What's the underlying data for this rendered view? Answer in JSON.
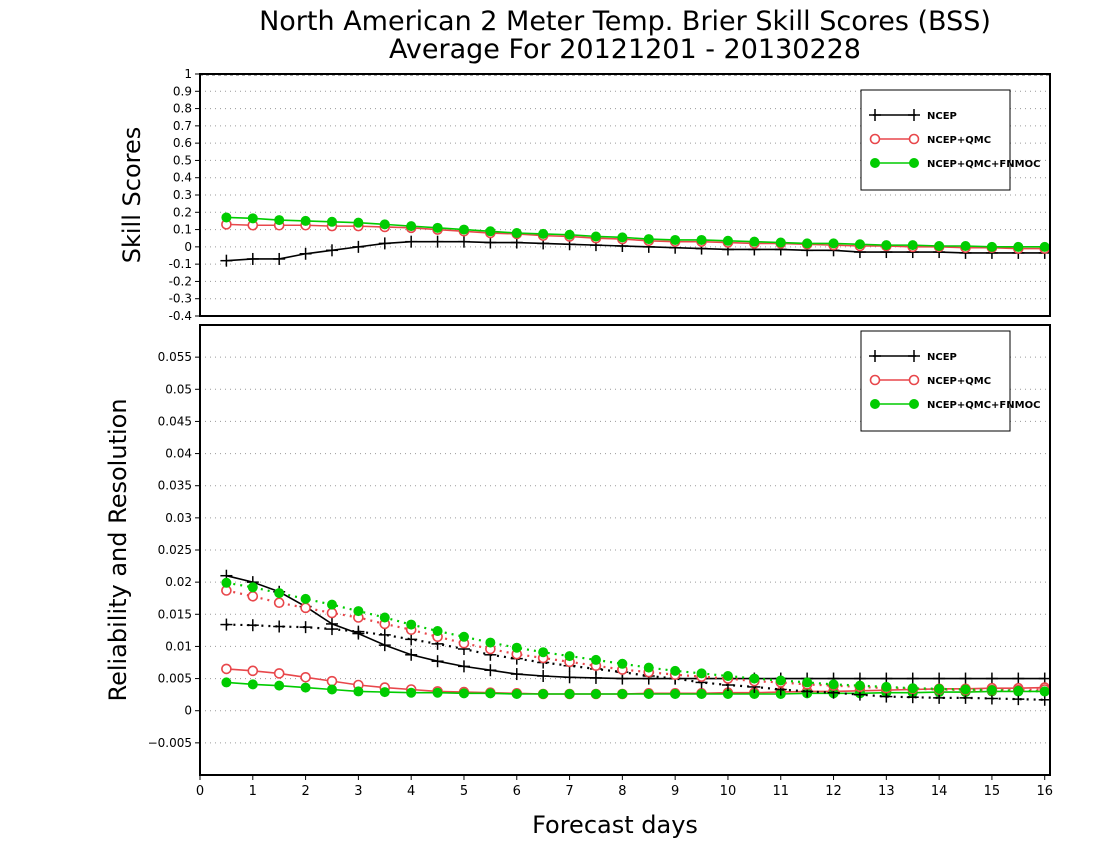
{
  "title_line1": "North American 2 Meter Temp. Brier Skill Scores (BSS)",
  "title_line2": "Average For 20121201 - 20130228",
  "colors": {
    "ncep": "#000000",
    "qmc": "#e8474b",
    "fnmoc": "#00cc00"
  },
  "chart_data": [
    {
      "type": "line",
      "ylabel": "Skill Scores",
      "ylim": [
        -0.4,
        1
      ],
      "yticks": [
        1,
        0.9,
        0.8,
        0.7,
        0.6,
        0.5,
        0.4,
        0.3,
        0.2,
        0.1,
        0,
        -0.1,
        -0.2,
        -0.3,
        -0.4
      ],
      "xlim": [
        0,
        16.1
      ],
      "grid": true,
      "legend_position": "top-right",
      "x": [
        0.5,
        1,
        1.5,
        2,
        2.5,
        3,
        3.5,
        4,
        4.5,
        5,
        5.5,
        6,
        6.5,
        7,
        7.5,
        8,
        8.5,
        9,
        9.5,
        10,
        10.5,
        11,
        11.5,
        12,
        12.5,
        13,
        13.5,
        14,
        14.5,
        15,
        15.5,
        16
      ],
      "series": [
        {
          "name": "NCEP",
          "key": "ncep",
          "marker": "plus",
          "style": "solid",
          "values": [
            -0.08,
            -0.07,
            -0.07,
            -0.04,
            -0.02,
            0.0,
            0.02,
            0.03,
            0.03,
            0.03,
            0.025,
            0.025,
            0.02,
            0.015,
            0.01,
            0.005,
            0.0,
            -0.005,
            -0.01,
            -0.015,
            -0.015,
            -0.015,
            -0.02,
            -0.02,
            -0.03,
            -0.03,
            -0.03,
            -0.03,
            -0.035,
            -0.035,
            -0.035,
            -0.035
          ]
        },
        {
          "name": "NCEP+QMC",
          "key": "qmc",
          "marker": "circle-open",
          "style": "solid",
          "values": [
            0.13,
            0.125,
            0.125,
            0.125,
            0.12,
            0.12,
            0.115,
            0.11,
            0.1,
            0.09,
            0.08,
            0.075,
            0.065,
            0.06,
            0.05,
            0.045,
            0.035,
            0.03,
            0.03,
            0.025,
            0.02,
            0.02,
            0.015,
            0.01,
            0.005,
            0.005,
            0.0,
            0.0,
            -0.005,
            -0.005,
            -0.01,
            -0.01
          ]
        },
        {
          "name": "NCEP+QMC+FNMOC",
          "key": "fnmoc",
          "marker": "circle-filled",
          "style": "solid",
          "values": [
            0.17,
            0.165,
            0.155,
            0.15,
            0.145,
            0.14,
            0.13,
            0.12,
            0.11,
            0.1,
            0.09,
            0.08,
            0.075,
            0.07,
            0.06,
            0.055,
            0.045,
            0.04,
            0.04,
            0.035,
            0.03,
            0.025,
            0.02,
            0.02,
            0.015,
            0.01,
            0.01,
            0.005,
            0.005,
            0.0,
            0.0,
            0.0
          ]
        }
      ]
    },
    {
      "type": "line",
      "ylabel": "Reliability and Resolution",
      "xlabel": "Forecast days",
      "ylim": [
        -0.01,
        0.06
      ],
      "yticks": [
        0.055,
        0.05,
        0.045,
        0.04,
        0.035,
        0.03,
        0.025,
        0.02,
        0.015,
        0.01,
        0.005,
        0,
        -0.005
      ],
      "ytick_labels": [
        "0.055",
        "0.05",
        "0.045",
        "0.04",
        "0.035",
        "0.03",
        "0.025",
        "0.02",
        "0.015",
        "0.01",
        "0.005",
        "0",
        "−0.005"
      ],
      "xlim": [
        0,
        16.1
      ],
      "xticks": [
        0,
        1,
        2,
        3,
        4,
        5,
        6,
        7,
        8,
        9,
        10,
        11,
        12,
        13,
        14,
        15,
        16
      ],
      "grid": true,
      "legend_position": "top-right",
      "x": [
        0.5,
        1,
        1.5,
        2,
        2.5,
        3,
        3.5,
        4,
        4.5,
        5,
        5.5,
        6,
        6.5,
        7,
        7.5,
        8,
        8.5,
        9,
        9.5,
        10,
        10.5,
        11,
        11.5,
        12,
        12.5,
        13,
        13.5,
        14,
        14.5,
        15,
        15.5,
        16
      ],
      "series": [
        {
          "name": "NCEP",
          "key": "ncep",
          "marker": "plus",
          "style": "solid",
          "legend": true,
          "values": [
            0.021,
            0.02,
            0.0185,
            0.0162,
            0.0135,
            0.012,
            0.0102,
            0.0087,
            0.0077,
            0.0069,
            0.0063,
            0.0057,
            0.0054,
            0.0052,
            0.0051,
            0.005,
            0.005,
            0.005,
            0.005,
            0.005,
            0.005,
            0.005,
            0.005,
            0.005,
            0.005,
            0.005,
            0.005,
            0.005,
            0.005,
            0.005,
            0.005,
            0.005
          ]
        },
        {
          "name": "NCEP+QMC",
          "key": "qmc",
          "marker": "circle-open",
          "style": "solid",
          "legend": true,
          "values": [
            0.0065,
            0.0062,
            0.0058,
            0.0052,
            0.0046,
            0.004,
            0.0036,
            0.0033,
            0.003,
            0.0029,
            0.0028,
            0.0027,
            0.0026,
            0.0026,
            0.0026,
            0.0026,
            0.0027,
            0.0027,
            0.0027,
            0.0028,
            0.0028,
            0.0029,
            0.003,
            0.003,
            0.0031,
            0.0032,
            0.0033,
            0.0034,
            0.0034,
            0.0035,
            0.0035,
            0.0036
          ]
        },
        {
          "name": "NCEP+QMC+FNMOC",
          "key": "fnmoc",
          "marker": "circle-filled",
          "style": "solid",
          "legend": true,
          "values": [
            0.0044,
            0.0041,
            0.0039,
            0.0036,
            0.0033,
            0.003,
            0.0029,
            0.0028,
            0.0028,
            0.0027,
            0.0027,
            0.0026,
            0.0026,
            0.0026,
            0.0026,
            0.0026,
            0.0026,
            0.0026,
            0.0026,
            0.0026,
            0.0026,
            0.0026,
            0.0027,
            0.0027,
            0.0027,
            0.0028,
            0.0028,
            0.0029,
            0.0029,
            0.003,
            0.003,
            0.003
          ]
        },
        {
          "name": "NCEP",
          "key": "ncep",
          "marker": "plus",
          "style": "dotted",
          "legend": false,
          "values": [
            0.0134,
            0.0133,
            0.0131,
            0.013,
            0.0127,
            0.0123,
            0.0118,
            0.0111,
            0.0104,
            0.0096,
            0.0087,
            0.0081,
            0.0075,
            0.007,
            0.0065,
            0.006,
            0.0054,
            0.005,
            0.0044,
            0.004,
            0.0037,
            0.0033,
            0.003,
            0.0028,
            0.0025,
            0.0022,
            0.0021,
            0.002,
            0.002,
            0.0019,
            0.0018,
            0.0017
          ]
        },
        {
          "name": "NCEP+QMC",
          "key": "qmc",
          "marker": "circle-open",
          "style": "dotted",
          "legend": false,
          "values": [
            0.0187,
            0.0178,
            0.0168,
            0.016,
            0.0152,
            0.0145,
            0.0135,
            0.0126,
            0.0115,
            0.0105,
            0.0096,
            0.0088,
            0.0082,
            0.0076,
            0.007,
            0.0064,
            0.006,
            0.0056,
            0.0053,
            0.005,
            0.0046,
            0.0044,
            0.0041,
            0.0039,
            0.0037,
            0.0035,
            0.0034,
            0.0033,
            0.0032,
            0.0032,
            0.0032,
            0.0033
          ]
        },
        {
          "name": "NCEP+QMC+FNMOC",
          "key": "fnmoc",
          "marker": "circle-filled",
          "style": "dotted",
          "legend": false,
          "values": [
            0.0199,
            0.0192,
            0.0183,
            0.0174,
            0.0165,
            0.0155,
            0.0145,
            0.0134,
            0.0124,
            0.0115,
            0.0106,
            0.0098,
            0.0091,
            0.0085,
            0.0079,
            0.0073,
            0.0067,
            0.0062,
            0.0058,
            0.0054,
            0.005,
            0.0047,
            0.0044,
            0.0041,
            0.0039,
            0.0037,
            0.0035,
            0.0034,
            0.0033,
            0.0032,
            0.0031,
            0.003
          ]
        }
      ]
    }
  ]
}
